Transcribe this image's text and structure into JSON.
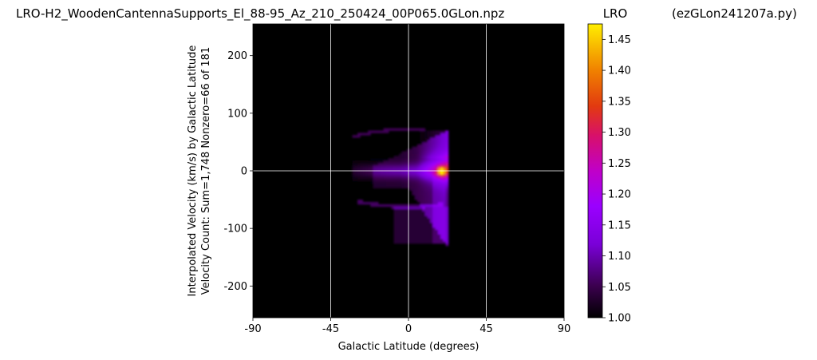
{
  "chart_data": {
    "type": "heatmap",
    "title": "LRO-H2_WoodenCantennaSupports_El_88-95_Az_210_250424_00P065.0GLon.npz",
    "title_right": "(ezGLon241207a.py)",
    "xlabel": "Galactic Latitude (degrees)",
    "ylabel_line1": "Interpolated Velocity (km/s) by Galactic Latitude",
    "ylabel_line2": "Velocity Count: Sum=1,748 Nonzero=66 of 181",
    "xlim": [
      -90,
      90
    ],
    "ylim": [
      -255,
      255
    ],
    "xticks": [
      -90,
      -45,
      0,
      45,
      90
    ],
    "yticks": [
      -200,
      -100,
      0,
      100,
      200
    ],
    "grid": true,
    "colorbar": {
      "label": "LRO",
      "range": [
        1.0,
        1.475
      ],
      "ticks": [
        "1.00",
        "1.05",
        "1.10",
        "1.15",
        "1.20",
        "1.25",
        "1.30",
        "1.35",
        "1.40",
        "1.45"
      ],
      "colormap": "gnuplot"
    },
    "data_region": {
      "columns_lat_range": [
        -33,
        22
      ],
      "velocity_range": [
        -128,
        70
      ],
      "peak": {
        "lat": 19,
        "vel": 0,
        "value": 1.47
      }
    }
  }
}
